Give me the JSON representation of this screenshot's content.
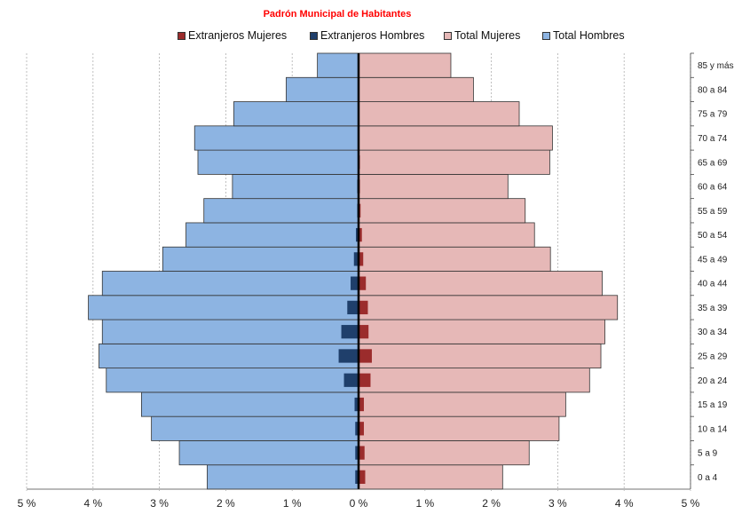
{
  "chart_data": {
    "type": "bar",
    "orientation": "horizontal",
    "layout": "population-pyramid",
    "title": "Padrón Municipal de Habitantes",
    "title_color": "#ff0000",
    "categories": [
      "0 a 4",
      "5 a 9",
      "10 a 14",
      "15 a 19",
      "20 a 24",
      "25 a 29",
      "30 a 34",
      "35 a 39",
      "40 a 44",
      "45 a 49",
      "50 a 54",
      "55 a 59",
      "60 a 64",
      "65 a 69",
      "70 a 74",
      "75 a 79",
      "80 a 84",
      "85 y más"
    ],
    "series": [
      {
        "name": "Extranjeros Mujeres",
        "side": "right",
        "color": "#9b2c2c",
        "values": [
          0.1,
          0.09,
          0.08,
          0.08,
          0.18,
          0.2,
          0.15,
          0.14,
          0.11,
          0.07,
          0.05,
          0.03,
          0.02,
          0.02,
          0.01,
          0.01,
          0.01,
          0.01
        ]
      },
      {
        "name": "Extranjeros Hombres",
        "side": "left",
        "color": "#1f3f6b",
        "values": [
          0.05,
          0.05,
          0.05,
          0.06,
          0.22,
          0.3,
          0.26,
          0.17,
          0.12,
          0.07,
          0.04,
          0.02,
          0.02,
          0.01,
          0.01,
          0.01,
          0.01,
          0.01
        ]
      },
      {
        "name": "Total Mujeres",
        "side": "right",
        "color": "#e6b8b7",
        "values": [
          2.17,
          2.57,
          3.02,
          3.12,
          3.48,
          3.65,
          3.71,
          3.9,
          3.67,
          2.89,
          2.65,
          2.51,
          2.25,
          2.88,
          2.92,
          2.42,
          1.73,
          1.39
        ]
      },
      {
        "name": "Total Hombres",
        "side": "left",
        "color": "#8db4e2",
        "values": [
          2.28,
          2.7,
          3.12,
          3.27,
          3.8,
          3.91,
          3.86,
          4.07,
          3.86,
          2.95,
          2.6,
          2.33,
          1.9,
          2.42,
          2.47,
          1.88,
          1.09,
          0.62
        ]
      }
    ],
    "x_ticks": [
      "5 %",
      "4 %",
      "3 %",
      "2 %",
      "1 %",
      "0 %",
      "1 %",
      "2 %",
      "3 %",
      "4 %",
      "5 %"
    ],
    "xlim": [
      -5,
      5
    ],
    "grid": true,
    "grid_style": "dashed vertical",
    "legend_position": "top"
  }
}
